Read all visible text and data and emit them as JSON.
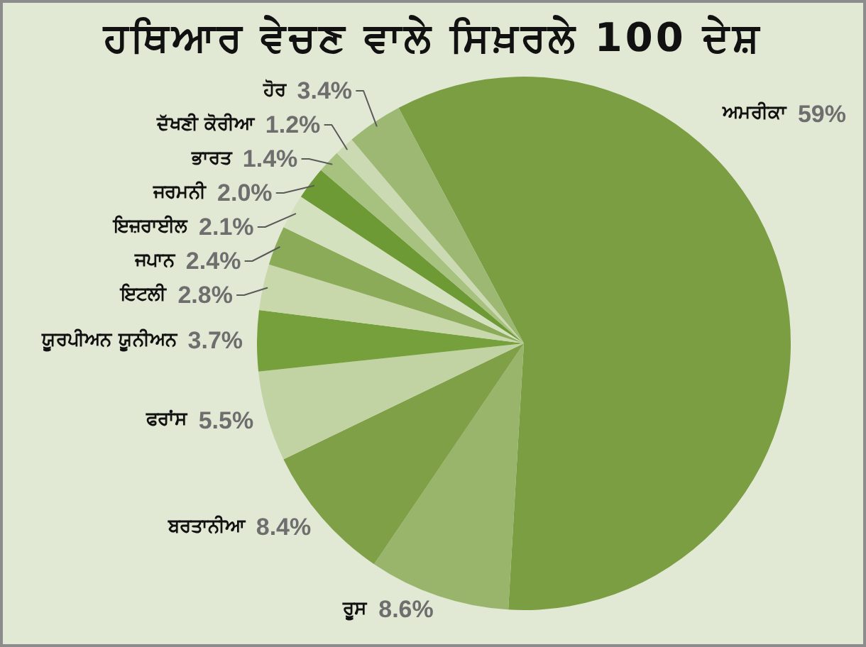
{
  "chart_data": {
    "type": "pie",
    "title": "ਹਥਿਆਰ ਵੇਚਣ ਵਾਲੇ ਸਿਖ਼ਰਲੇ 100 ਦੇਸ਼",
    "categories": [
      "ਅਮਰੀਕਾ",
      "ਰੂਸ",
      "ਬਰਤਾਨੀਆ",
      "ਫਰਾਂਸ",
      "ਯੂਰਪੀਅਨ ਯੂਨੀਅਨ",
      "ਇਟਲੀ",
      "ਜਪਾਨ",
      "ਇਜ਼ਰਾਈਲ",
      "ਜਰਮਨੀ",
      "ਭਾਰਤ",
      "ਦੱਖਣੀ ਕੋਰੀਆ",
      "ਹੋਰ"
    ],
    "values": [
      59,
      8.6,
      8.4,
      5.5,
      3.7,
      2.8,
      2.4,
      2.1,
      2.0,
      1.4,
      1.2,
      3.4
    ],
    "value_labels": [
      "59%",
      "8.6%",
      "8.4%",
      "5.5%",
      "3.7%",
      "2.8%",
      "2.4%",
      "2.1%",
      "2.0%",
      "1.4%",
      "1.2%",
      "3.4%"
    ],
    "colors": [
      "#7b9e43",
      "#98b56b",
      "#7fa046",
      "#c2d3a3",
      "#76a03b",
      "#c8d8ab",
      "#8bab58",
      "#d4e1bf",
      "#6e9a36",
      "#a7c17f",
      "#ccdab4",
      "#9db872"
    ]
  }
}
